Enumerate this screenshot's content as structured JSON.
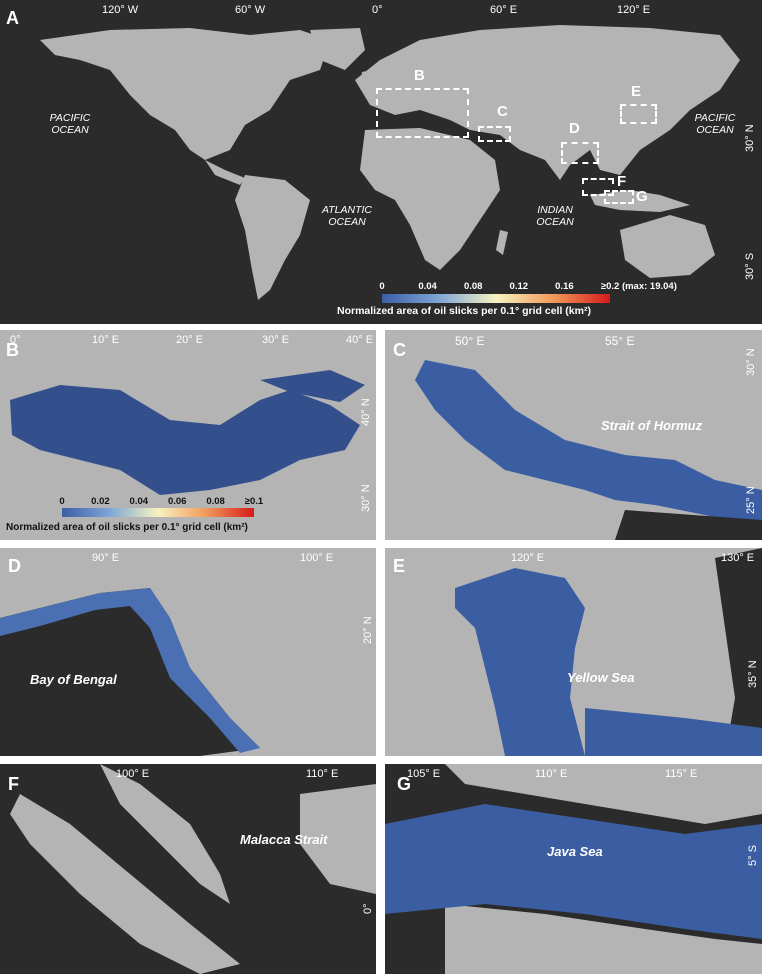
{
  "panels": {
    "A": {
      "label": "A",
      "lon_ticks": [
        "120° W",
        "60° W",
        "0°",
        "60° E",
        "120° E"
      ],
      "lat_ticks": [
        "30° N",
        "30° S"
      ],
      "oceans": [
        {
          "name": "PACIFIC\nOCEAN"
        },
        {
          "name": "ATLANTIC\nOCEAN"
        },
        {
          "name": "INDIAN\nOCEAN"
        },
        {
          "name": "PACIFIC\nOCEAN"
        }
      ],
      "boxes": [
        "B",
        "C",
        "D",
        "E",
        "F",
        "G"
      ],
      "legend": {
        "ticks": [
          "0",
          "0.04",
          "0.08",
          "0.12",
          "0.16",
          "≥0.2 (max: 19.04)"
        ],
        "title": "Normalized area of oil slicks per 0.1° grid cell (km²)"
      }
    },
    "B": {
      "label": "B",
      "lon_ticks": [
        "0°",
        "10° E",
        "20° E",
        "30° E",
        "40° E"
      ],
      "lat_ticks": [
        "40° N",
        "30° N"
      ],
      "legend": {
        "ticks": [
          "0",
          "0.02",
          "0.04",
          "0.06",
          "0.08",
          "≥0.1"
        ],
        "title": "Normalized area of oil slicks per 0.1° grid cell (km²)"
      }
    },
    "C": {
      "label": "C",
      "lon_ticks": [
        "50° E",
        "55° E"
      ],
      "lat_ticks": [
        "30° N",
        "25° N"
      ],
      "region": "Strait of Hormuz"
    },
    "D": {
      "label": "D",
      "lon_ticks": [
        "90° E",
        "100° E"
      ],
      "lat_ticks": [
        "20° N"
      ],
      "region": "Bay of Bengal"
    },
    "E": {
      "label": "E",
      "lon_ticks": [
        "120° E",
        "130° E"
      ],
      "lat_ticks": [
        "35° N"
      ],
      "region": "Yellow Sea"
    },
    "F": {
      "label": "F",
      "lon_ticks": [
        "100° E",
        "110° E"
      ],
      "lat_ticks": [
        "0°"
      ],
      "region": "Malacca Strait"
    },
    "G": {
      "label": "G",
      "lon_ticks": [
        "105° E",
        "110° E",
        "115° E"
      ],
      "lat_ticks": [
        "5° S"
      ],
      "region": "Java Sea"
    }
  },
  "colors": {
    "ocean": "#2b2b2b",
    "land": "#b4b4b4",
    "scale_low": "#3a5fa8",
    "scale_mid": "#f7f3c0",
    "scale_high": "#d7191c"
  }
}
